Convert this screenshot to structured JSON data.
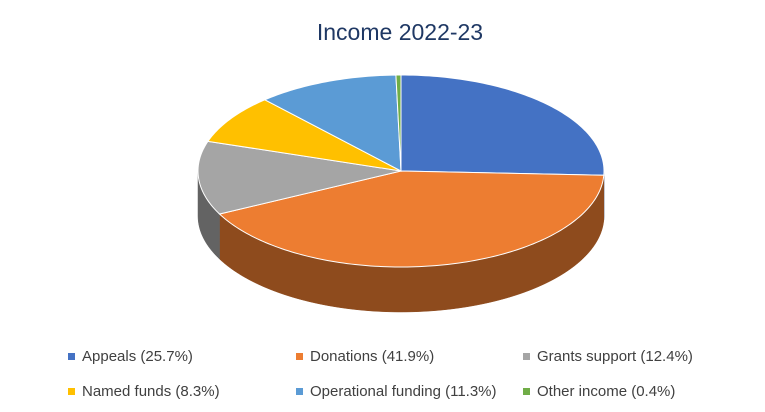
{
  "chart_data": {
    "type": "pie3d",
    "title": "Income 2022-23",
    "categories": [
      "Appeals (25.7%)",
      "Donations (41.9%)",
      "Grants support (12.4%)",
      "Named funds (8.3%)",
      "Operational funding (11.3%)",
      "Other income (0.4%)"
    ],
    "values": [
      25.7,
      41.9,
      12.4,
      8.3,
      11.3,
      0.4
    ],
    "colors": [
      "#4472c4",
      "#ed7d31",
      "#a5a5a5",
      "#ffc000",
      "#5b9bd5",
      "#70ad47"
    ],
    "legend": "bottom"
  }
}
